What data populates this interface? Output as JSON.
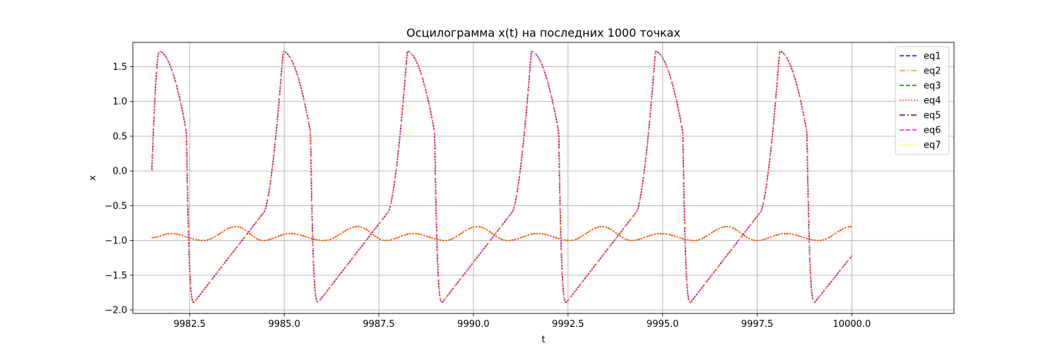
{
  "chart_data": {
    "type": "line",
    "title": "Осцилограмма x(t) на последних 1000 точках",
    "xlabel": "t",
    "ylabel": "x",
    "xlim": [
      9981.0,
      10002.7
    ],
    "ylim": [
      -2.05,
      1.85
    ],
    "grid": true,
    "legend_position": "top-right",
    "x_ticks": [
      9982.5,
      9985.0,
      9987.5,
      9990.0,
      9992.5,
      9995.0,
      9997.5,
      10000.0
    ],
    "x_tick_labels": [
      "9982.5",
      "9985.0",
      "9987.5",
      "9990.0",
      "9992.5",
      "9995.0",
      "9997.5",
      "10000.0"
    ],
    "y_ticks": [
      1.5,
      1.0,
      0.5,
      0.0,
      -0.5,
      -1.0,
      -1.5,
      -2.0
    ],
    "y_tick_labels": [
      "1.5",
      "1.0",
      "0.5",
      "0.0",
      "−0.5",
      "−1.0",
      "−1.5",
      "−2.0"
    ],
    "relaxation_waveform": {
      "t_start": 9981.5,
      "t_end": 10000.0,
      "period": 3.28,
      "peak_times": [
        9981.7,
        9984.97,
        9988.25,
        9991.53,
        9994.81,
        9998.09
      ],
      "trough_times": [
        9982.62,
        9985.9,
        9989.18,
        9992.46,
        9995.74,
        9999.02
      ],
      "peak_value": 1.72,
      "trough_value": -1.89,
      "initial_value": 0.0,
      "end_value": -1.22
    },
    "small_oscillation": {
      "t_start": 9981.5,
      "t_end": 10000.0,
      "min_value": -1.0,
      "max_value": -0.8,
      "high_peak_times": [
        9983.73,
        9986.95,
        9990.1,
        9993.4,
        9996.7,
        10000.0
      ],
      "low_peak_times": [
        9982.0,
        9985.15,
        9988.4,
        9991.7,
        9994.95,
        9998.25
      ],
      "high_peak_value": -0.8,
      "low_peak_value": -0.9
    },
    "series": [
      {
        "name": "eq1",
        "color": "#0000ff",
        "dash": "dashed",
        "shape": "relaxation"
      },
      {
        "name": "eq2",
        "color": "#ffa500",
        "dash": "dashdot",
        "shape": "small"
      },
      {
        "name": "eq3",
        "color": "#008000",
        "dash": "dashed",
        "shape": "relaxation"
      },
      {
        "name": "eq4",
        "color": "#ff0000",
        "dash": "dotted",
        "shape": "small"
      },
      {
        "name": "eq5",
        "color": "#4b0082",
        "dash": "dashdot",
        "shape": "relaxation"
      },
      {
        "name": "eq6",
        "color": "#ff00ff",
        "dash": "dashed",
        "shape": "relaxation"
      },
      {
        "name": "eq7",
        "color": "#ffff00",
        "dash": "dotted",
        "shape": "relaxation"
      }
    ]
  }
}
